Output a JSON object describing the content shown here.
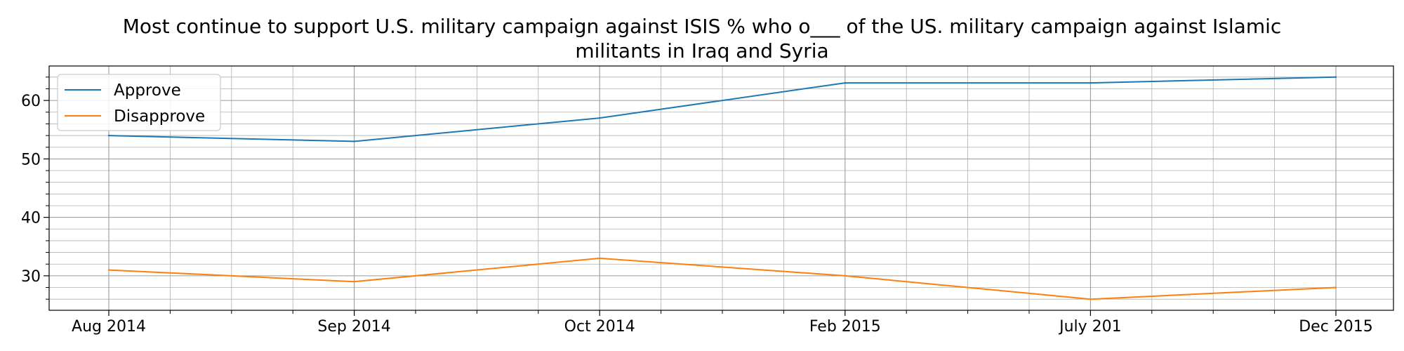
{
  "chart_data": {
    "type": "line",
    "title_line1": "Most continue to support U.S. military campaign against ISIS % who o___ of the US. military campaign against Islamic",
    "title_line2": "militants in Iraq and Syria",
    "categories": [
      "Aug 2014",
      "Sep 2014",
      "Oct 2014",
      "Feb 2015",
      "July 201",
      "Dec 2015"
    ],
    "series": [
      {
        "name": "Approve",
        "values": [
          54,
          53,
          57,
          63,
          63,
          64
        ],
        "color": "#1f77b4"
      },
      {
        "name": "Disapprove",
        "values": [
          31,
          29,
          33,
          30,
          26,
          28
        ],
        "color": "#ff7f0e"
      }
    ],
    "xlabel": "",
    "ylabel": "",
    "ylim": [
      24.1,
      65.9
    ],
    "yticks": [
      30,
      40,
      50,
      60
    ],
    "grid": true,
    "legend_position": "upper-left"
  }
}
